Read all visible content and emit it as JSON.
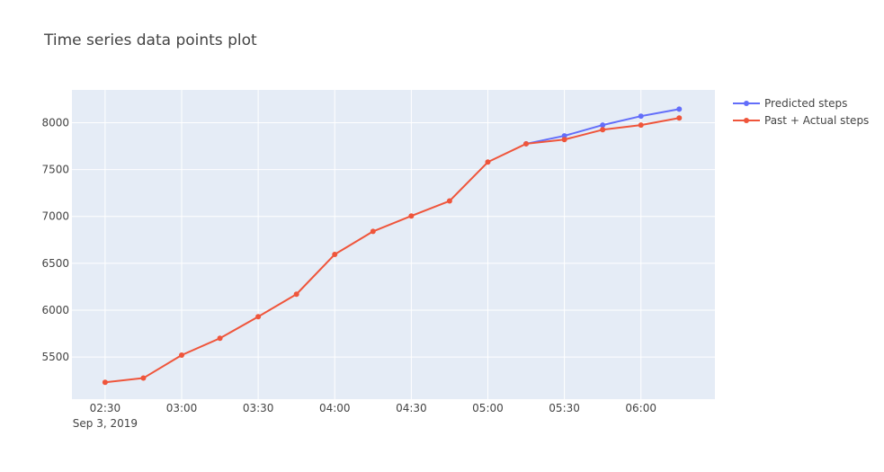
{
  "chart_data": {
    "type": "line",
    "title": "Time series  data points plot",
    "xlabel": "",
    "ylabel": "",
    "x_tick_labels": [
      "02:30",
      "03:00",
      "03:30",
      "04:00",
      "04:30",
      "05:00",
      "05:30",
      "06:00"
    ],
    "x_tick_sublabel": "Sep 3, 2019",
    "y_ticks": [
      5500,
      6000,
      6500,
      7000,
      7500,
      8000
    ],
    "y_tick_labels": [
      "5500",
      "6000",
      "6500",
      "7000",
      "7500",
      "8000"
    ],
    "xlim": [
      "2019-09-03 02:17",
      "2019-09-03 06:29"
    ],
    "ylim": [
      5050,
      8350
    ],
    "grid": true,
    "legend_position": "top-right",
    "series": [
      {
        "name": "Predicted steps",
        "color": "#636efa",
        "x": [
          "2019-09-03 05:15",
          "2019-09-03 05:30",
          "2019-09-03 05:45",
          "2019-09-03 06:00",
          "2019-09-03 06:15"
        ],
        "values": [
          7775,
          7860,
          7975,
          8070,
          8145
        ]
      },
      {
        "name": "Past + Actual steps",
        "color": "#ef553b",
        "x": [
          "2019-09-03 02:30",
          "2019-09-03 02:45",
          "2019-09-03 03:00",
          "2019-09-03 03:15",
          "2019-09-03 03:30",
          "2019-09-03 03:45",
          "2019-09-03 04:00",
          "2019-09-03 04:15",
          "2019-09-03 04:30",
          "2019-09-03 04:45",
          "2019-09-03 05:00",
          "2019-09-03 05:15",
          "2019-09-03 05:30",
          "2019-09-03 05:45",
          "2019-09-03 06:00",
          "2019-09-03 06:15"
        ],
        "values": [
          5230,
          5275,
          5520,
          5700,
          5930,
          6170,
          6595,
          6840,
          7005,
          7165,
          7580,
          7775,
          7820,
          7925,
          7975,
          8050
        ]
      }
    ]
  },
  "style": {
    "plot_bg": "#e5ecf6",
    "grid_color": "#ffffff",
    "text_color": "#444444"
  }
}
